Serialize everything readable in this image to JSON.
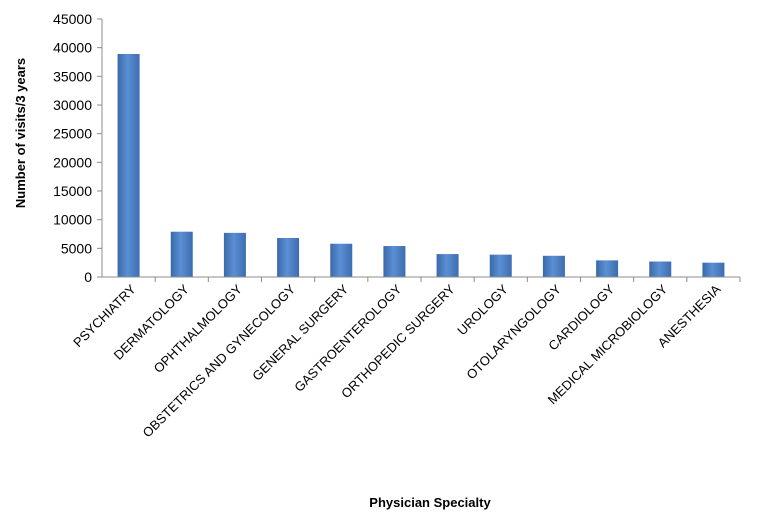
{
  "chart_data": {
    "type": "bar",
    "title": "",
    "xlabel": "Physician Specialty",
    "ylabel": "Number of visits/3 years",
    "ylim": [
      0,
      45000
    ],
    "yticks": [
      0,
      5000,
      10000,
      15000,
      20000,
      25000,
      30000,
      35000,
      40000,
      45000
    ],
    "categories": [
      "PSYCHIATRY",
      "DERMATOLOGY",
      "OPHTHALMOLOGY",
      "OBSTETRICS AND GYNECOLOGY",
      "GENERAL SURGERY",
      "GASTROENTEROLOGY",
      "ORTHOPEDIC SURGERY",
      "UROLOGY",
      "OTOLARYNGOLOGY",
      "CARDIOLOGY",
      "MEDICAL MICROBIOLOGY",
      "ANESTHESIA"
    ],
    "values": [
      38900,
      7900,
      7700,
      6800,
      5800,
      5400,
      4000,
      3900,
      3700,
      2900,
      2700,
      2500
    ],
    "grid": false,
    "legend": "none",
    "bar_color": "#4a7fc6"
  }
}
